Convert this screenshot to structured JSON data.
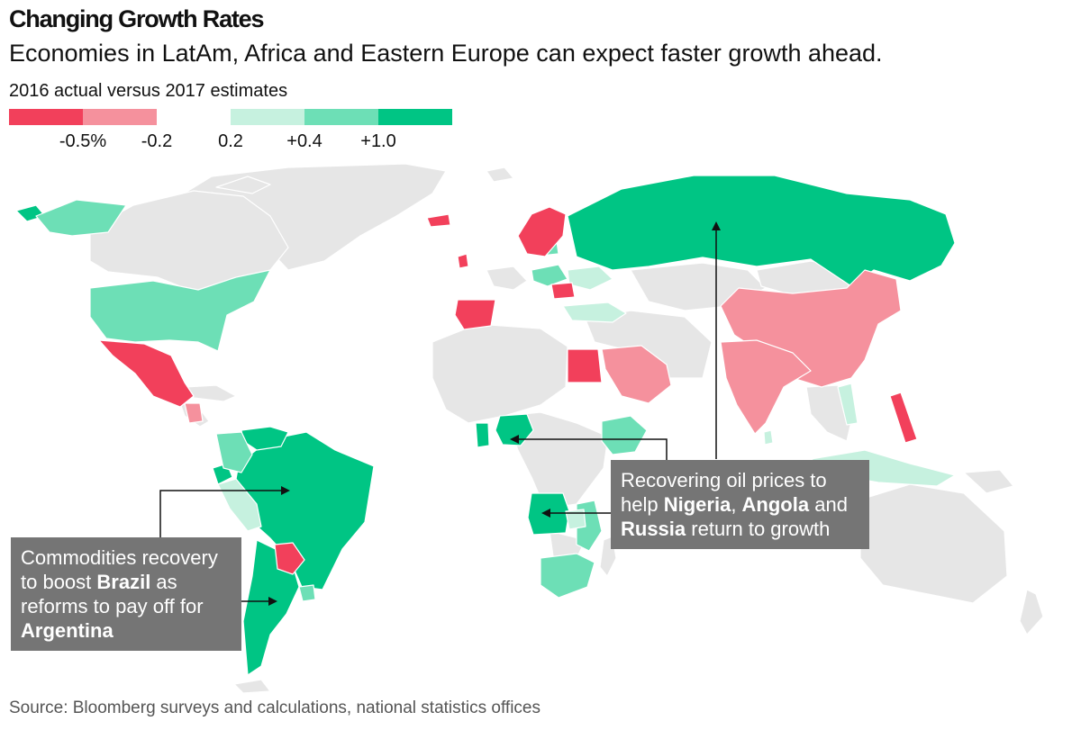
{
  "title": "Changing Growth Rates",
  "subtitle": "Economies in LatAm, Africa and Eastern Europe can expect faster growth ahead.",
  "legend": {
    "title": "2016 actual versus 2017 estimates",
    "colors": [
      "#f2405b",
      "#f5919d",
      "#ffffff",
      "#c6f1df",
      "#6ddfb6",
      "#00c584"
    ],
    "labels": [
      "-0.5%",
      "-0.2",
      "0.2",
      "+0.4",
      "+1.0"
    ]
  },
  "map_colors": {
    "no_data": "#e6e6e6",
    "border": "#ffffff"
  },
  "callouts": {
    "latam": {
      "parts": [
        "Commodities recovery to boost ",
        "Brazil",
        " as reforms to pay off for ",
        "Argentina"
      ]
    },
    "oil": {
      "parts": [
        "Recovering oil prices to help ",
        "Nigeria",
        ", ",
        "Angola",
        " and ",
        "Russia",
        " return to growth"
      ]
    }
  },
  "source": "Source: Bloomberg surveys and calculations, national statistics offices"
}
